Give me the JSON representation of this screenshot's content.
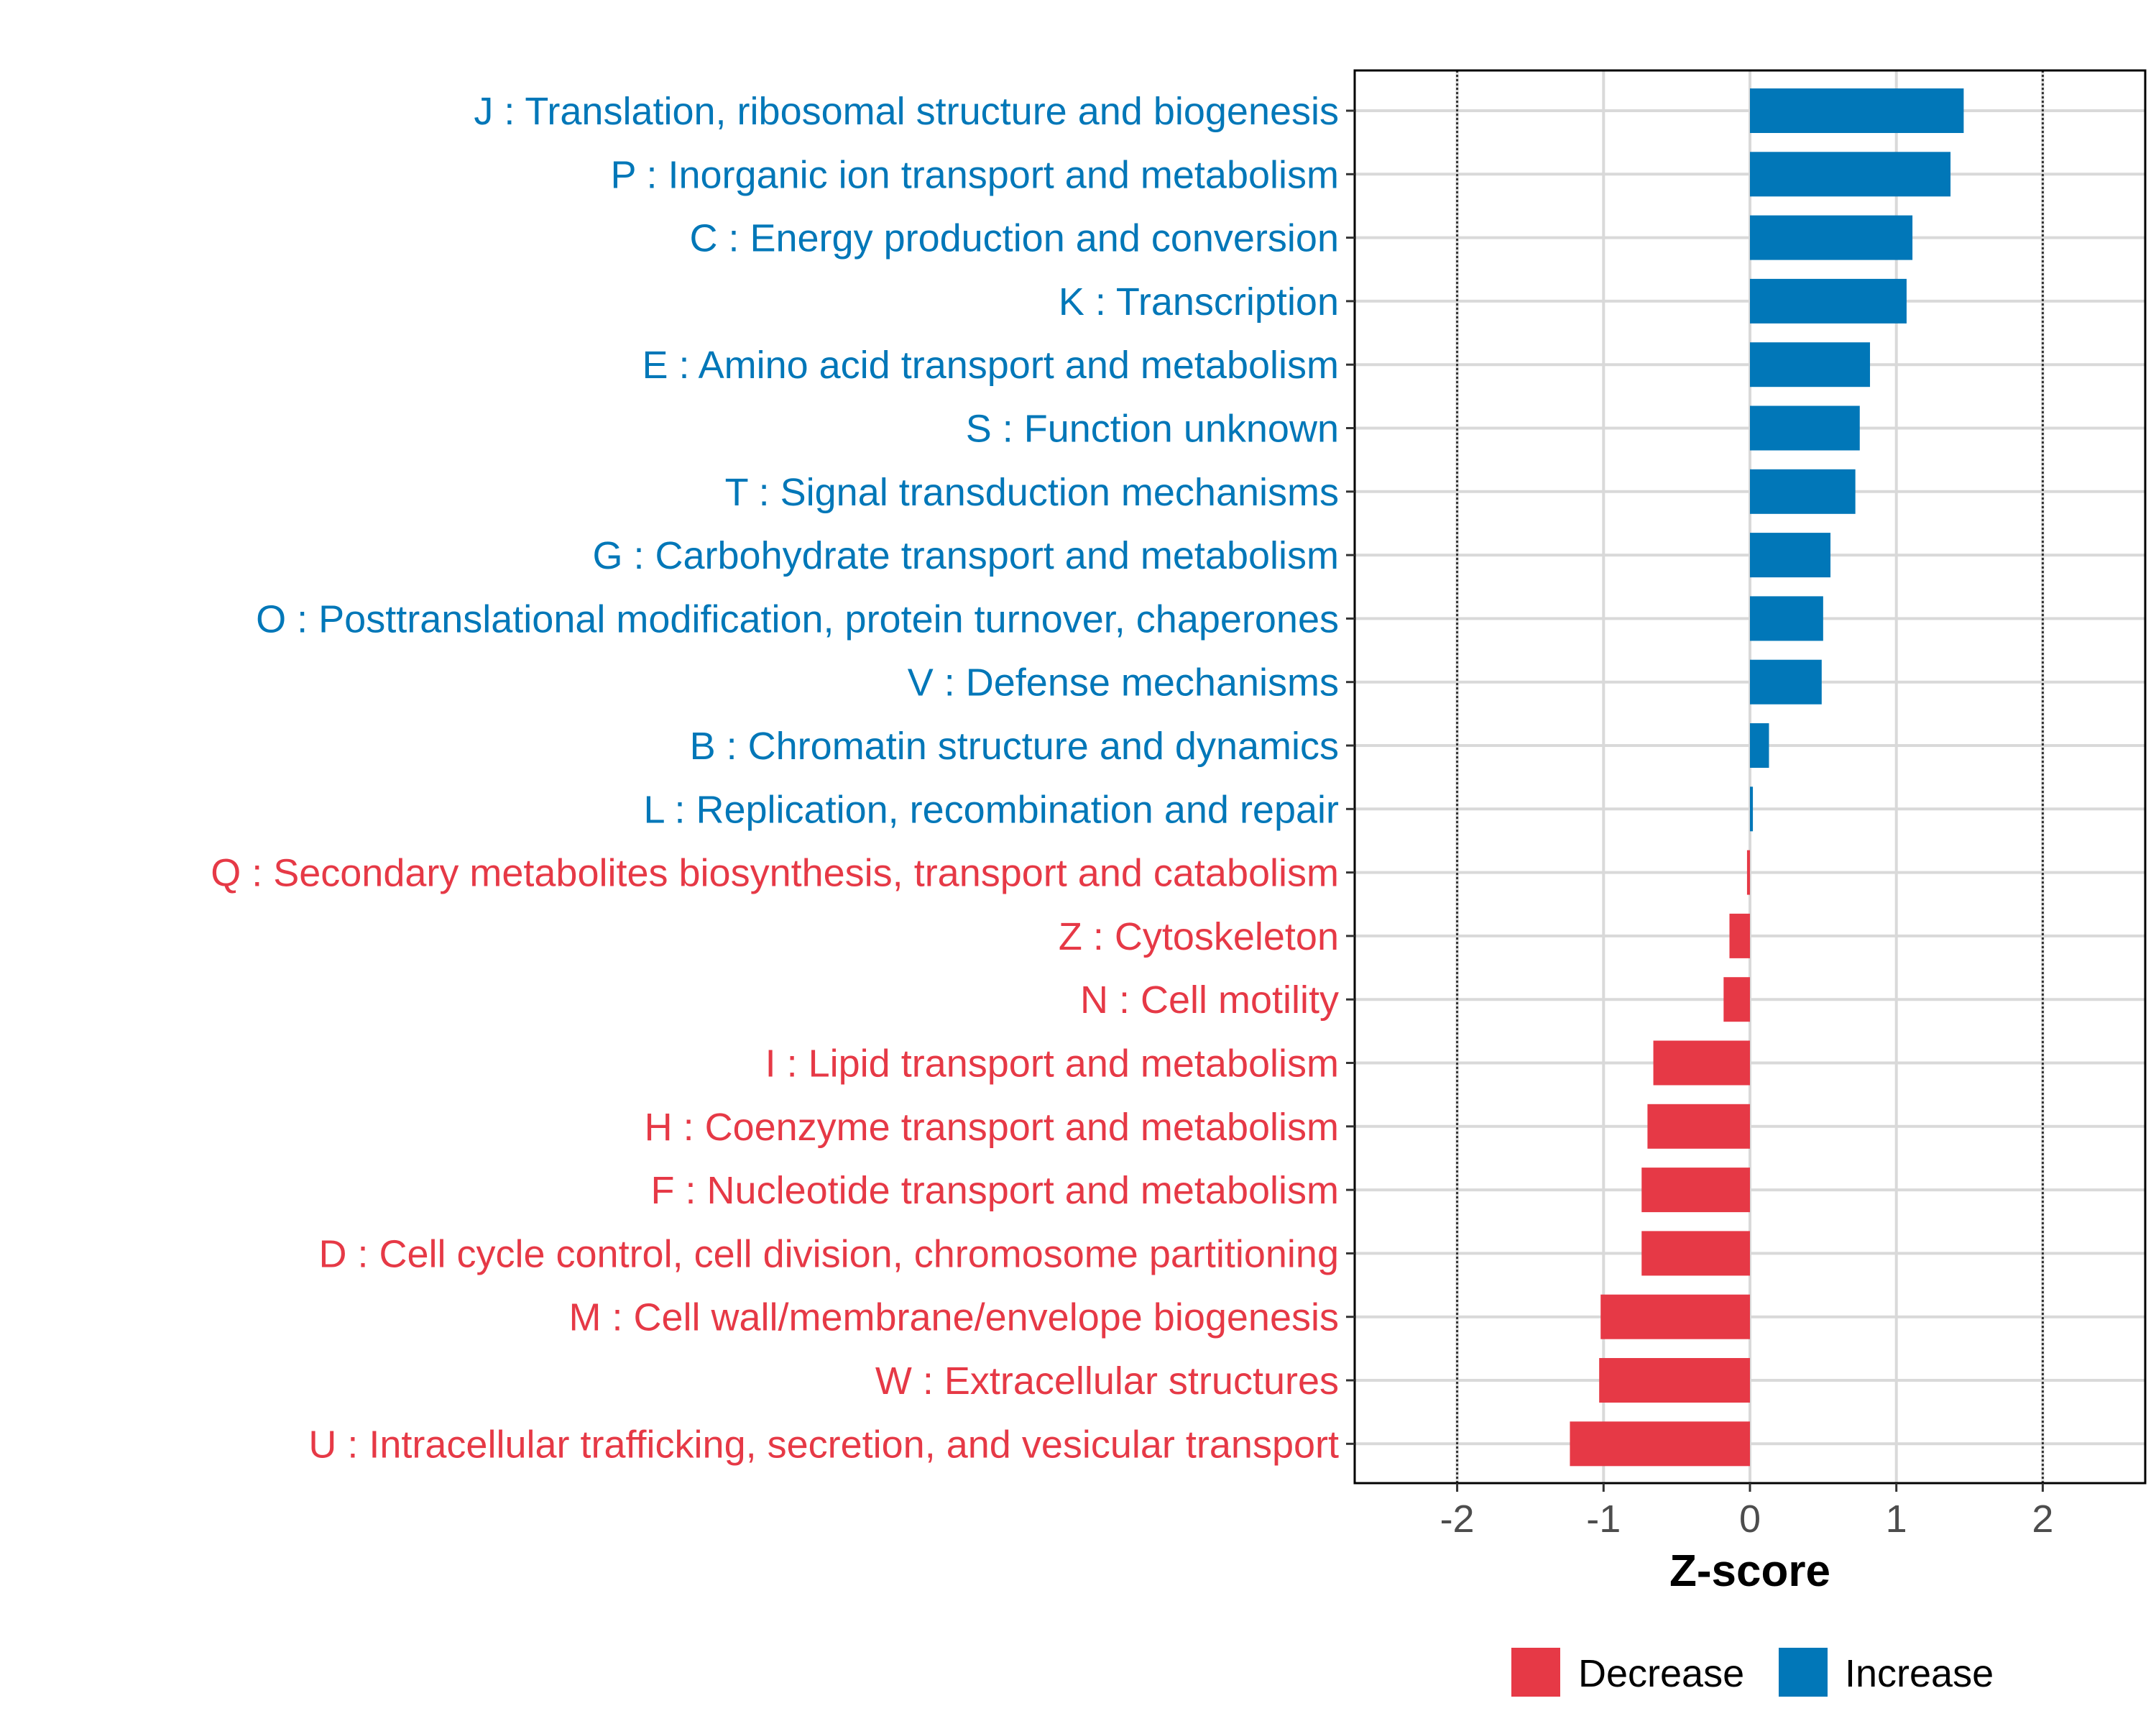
{
  "chart_data": {
    "type": "bar",
    "orientation": "horizontal",
    "xlabel": "Z-score",
    "xlim": [
      -2.7,
      2.7
    ],
    "xticks": [
      -2,
      -1,
      0,
      1,
      2
    ],
    "xtick_labels": [
      "-2",
      "-1",
      "0",
      "1",
      "2"
    ],
    "reference_lines": [
      -2,
      2
    ],
    "grid": true,
    "legend_position": "bottom",
    "colors": {
      "Increase": "#0177b8",
      "Decrease": "#e63946",
      "grid": "#d9d9d9",
      "axis": "#000000",
      "tick_text": "#4d4d4d",
      "reference_line": "#333333"
    },
    "legend": [
      {
        "label": "Decrease",
        "color": "#e63946"
      },
      {
        "label": "Increase",
        "color": "#0177b8"
      }
    ],
    "categories": [
      "J : Translation, ribosomal structure and biogenesis",
      "P : Inorganic ion transport and metabolism",
      "C : Energy production and conversion",
      "K : Transcription",
      "E : Amino acid transport and metabolism",
      "S : Function unknown",
      "T : Signal transduction mechanisms",
      "G : Carbohydrate transport and metabolism",
      "O : Posttranslational modification, protein turnover, chaperones",
      "V : Defense mechanisms",
      "B : Chromatin structure and dynamics",
      "L : Replication, recombination and repair",
      "Q : Secondary metabolites biosynthesis, transport and catabolism",
      "Z : Cytoskeleton",
      "N : Cell motility",
      "I : Lipid transport and metabolism",
      "H : Coenzyme transport and metabolism",
      "F : Nucleotide transport and metabolism",
      "D : Cell cycle control, cell division, chromosome partitioning",
      "M : Cell wall/membrane/envelope biogenesis",
      "W : Extracellular structures",
      "U : Intracellular trafficking, secretion, and vesicular transport"
    ],
    "values": [
      1.46,
      1.37,
      1.11,
      1.07,
      0.82,
      0.75,
      0.72,
      0.55,
      0.5,
      0.49,
      0.13,
      0.02,
      -0.02,
      -0.14,
      -0.18,
      -0.66,
      -0.7,
      -0.74,
      -0.74,
      -1.02,
      -1.03,
      -1.23
    ],
    "groups": [
      "Increase",
      "Increase",
      "Increase",
      "Increase",
      "Increase",
      "Increase",
      "Increase",
      "Increase",
      "Increase",
      "Increase",
      "Increase",
      "Increase",
      "Decrease",
      "Decrease",
      "Decrease",
      "Decrease",
      "Decrease",
      "Decrease",
      "Decrease",
      "Decrease",
      "Decrease",
      "Decrease"
    ]
  }
}
